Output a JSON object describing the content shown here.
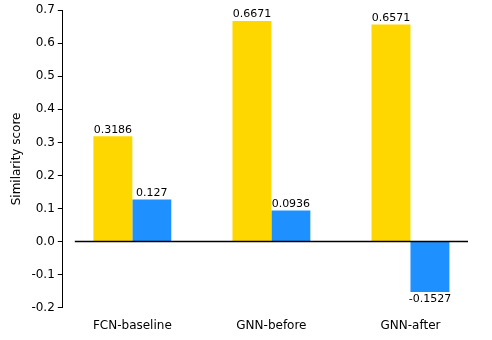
{
  "chart_data": {
    "type": "bar",
    "y_label": "Similarity score",
    "categories": [
      "FCN-baseline",
      "GNN-before",
      "GNN-after"
    ],
    "series": [
      {
        "color": "#ffd700",
        "values": [
          0.3186,
          0.6671,
          0.6571
        ]
      },
      {
        "color": "#1e90ff",
        "values": [
          0.127,
          0.0936,
          -0.1527
        ]
      }
    ],
    "ylim": [
      -0.2,
      0.7
    ],
    "yticks": [
      -0.2,
      -0.1,
      {
        "value": 0,
        "label": "0.0"
      },
      0.1,
      0.2,
      0.3,
      0.4,
      0.5,
      0.6,
      0.7
    ],
    "grid": false,
    "data_labels": true
  }
}
